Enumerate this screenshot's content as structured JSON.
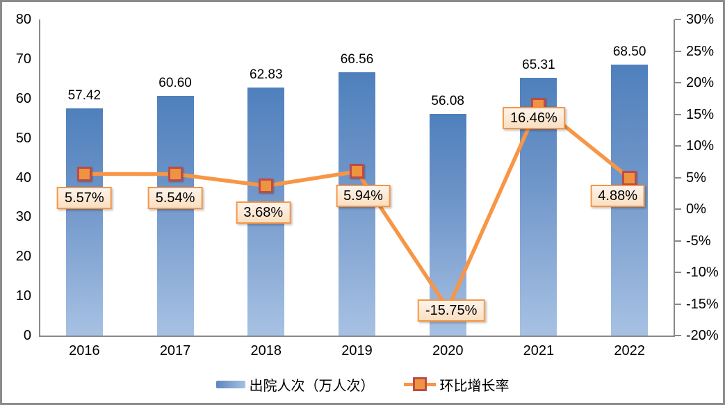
{
  "chart_data": {
    "type": "bar",
    "subtype": "combo-bar-line-dual-axis",
    "categories": [
      "2016",
      "2017",
      "2018",
      "2019",
      "2020",
      "2021",
      "2022"
    ],
    "series": [
      {
        "name": "出院人次（万人次）",
        "type": "bar",
        "axis": "left",
        "values": [
          57.42,
          60.6,
          62.83,
          66.56,
          56.08,
          65.31,
          68.5
        ],
        "labels": [
          "57.42",
          "60.60",
          "62.83",
          "66.56",
          "56.08",
          "65.31",
          "68.50"
        ]
      },
      {
        "name": "环比增长率",
        "type": "line",
        "axis": "right",
        "values": [
          5.57,
          5.54,
          3.68,
          5.94,
          -15.75,
          16.46,
          4.88
        ],
        "labels": [
          "5.57%",
          "5.54%",
          "3.68%",
          "5.94%",
          "-15.75%",
          "16.46%",
          "4.88%"
        ]
      }
    ],
    "left_axis": {
      "min": 0,
      "max": 80,
      "step": 10,
      "tick_labels": [
        "0",
        "10",
        "20",
        "30",
        "40",
        "50",
        "60",
        "70",
        "80"
      ]
    },
    "right_axis": {
      "min": -20,
      "max": 30,
      "step": 5,
      "tick_labels": [
        "30%",
        "25%",
        "20%",
        "15%",
        "10%",
        "5%",
        "0%",
        "-5%",
        "-10%",
        "-15%",
        "-20%"
      ]
    },
    "grid": "off",
    "legend_position": "bottom-center",
    "colors": {
      "bar_top": "#4f80bc",
      "bar_bottom": "#a7c1e3",
      "line": "#f79646",
      "marker_fill": "#ee9440",
      "marker_border": "#be4b48",
      "label_box_border": "#f79646",
      "label_box_fill_top": "#fdf4ec",
      "label_box_fill_bottom": "#fbdfc0",
      "axis_line": "#898989",
      "text": "#000000",
      "outer_border": "#8b8b8b"
    },
    "label_offsets": {
      "dx": [
        0,
        0,
        -4,
        9,
        5,
        -7,
        -17
      ],
      "dy": [
        19,
        18,
        22,
        19,
        -13,
        3,
        9
      ]
    }
  }
}
